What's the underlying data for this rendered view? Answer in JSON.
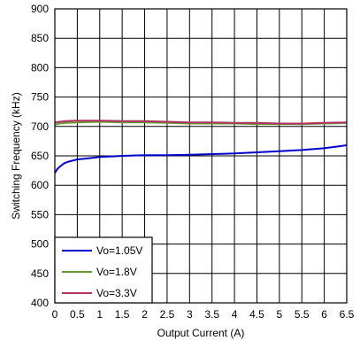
{
  "chart_data": {
    "type": "line",
    "title": "",
    "xlabel": "Output Current (A)",
    "ylabel": "Switching Frequency (kHz)",
    "xlim": [
      0,
      6.5
    ],
    "ylim": [
      400,
      900
    ],
    "x_ticks": [
      0,
      0.5,
      1,
      1.5,
      2,
      2.5,
      3,
      3.5,
      4,
      4.5,
      5,
      5.5,
      6,
      6.5
    ],
    "x_tick_labels": [
      "0",
      "0.5",
      "1",
      "1.5",
      "2",
      "2.5",
      "3",
      "3.5",
      "4",
      "4.5",
      "5",
      "5.5",
      "6",
      "6.5"
    ],
    "y_ticks": [
      400,
      450,
      500,
      550,
      600,
      650,
      700,
      750,
      800,
      850,
      900
    ],
    "y_tick_labels": [
      "400",
      "450",
      "500",
      "550",
      "600",
      "650",
      "700",
      "750",
      "800",
      "850",
      "900"
    ],
    "grid": true,
    "legend_position": "bottom-left",
    "series": [
      {
        "name": "Vo=1.05V",
        "color": "#0000cc",
        "x": [
          0,
          0.05,
          0.1,
          0.2,
          0.3,
          0.5,
          0.75,
          1,
          1.5,
          2,
          2.5,
          3,
          3.5,
          4,
          4.5,
          5,
          5.5,
          6,
          6.5
        ],
        "y": [
          621,
          627,
          631,
          637,
          640,
          644,
          646,
          648,
          650,
          651,
          651,
          652,
          653,
          654,
          656,
          658,
          660,
          663,
          668
        ]
      },
      {
        "name": "Vo=1.8V",
        "color": "#669933",
        "x": [
          0,
          0.1,
          0.25,
          0.5,
          1,
          1.5,
          2,
          2.5,
          3,
          3.5,
          4,
          4.5,
          5,
          5.5,
          6,
          6.5
        ],
        "y": [
          703,
          705,
          706,
          707,
          708,
          707,
          707,
          706,
          705,
          705,
          705,
          704,
          704,
          704,
          705,
          706
        ]
      },
      {
        "name": "Vo=3.3V",
        "color": "#b03060",
        "x": [
          0,
          0.1,
          0.25,
          0.5,
          1,
          1.5,
          2,
          2.5,
          3,
          3.5,
          4,
          4.5,
          5,
          5.5,
          6,
          6.5
        ],
        "y": [
          707,
          708,
          709,
          710,
          710,
          709,
          709,
          708,
          707,
          707,
          706,
          706,
          705,
          705,
          706,
          707
        ]
      }
    ]
  }
}
